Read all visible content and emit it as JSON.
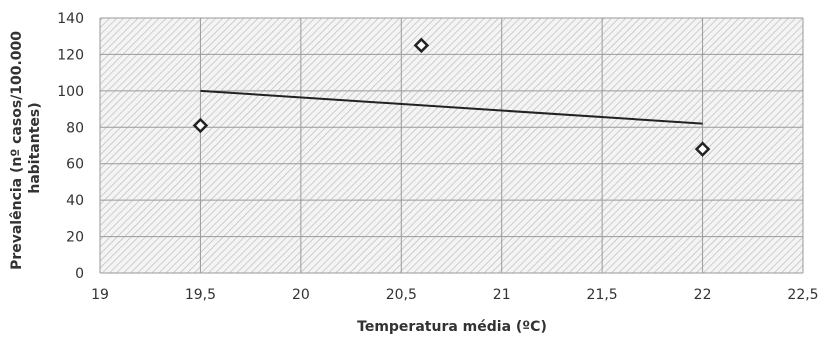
{
  "chart_data": {
    "type": "scatter",
    "title": "",
    "xlabel": "Temperatura média (ºC)",
    "ylabel_lines": [
      "Prevalência (nº casos/100.000",
      "habitantes)"
    ],
    "xlim": [
      19,
      22.5
    ],
    "ylim": [
      0,
      140
    ],
    "x_ticks": [
      19,
      19.5,
      20,
      20.5,
      21,
      21.5,
      22,
      22.5
    ],
    "x_tick_labels": [
      "19",
      "19,5",
      "20",
      "20,5",
      "21",
      "21,5",
      "22",
      "22,5"
    ],
    "y_ticks": [
      0,
      20,
      40,
      60,
      80,
      100,
      120,
      140
    ],
    "y_tick_labels": [
      "0",
      "20",
      "40",
      "60",
      "80",
      "100",
      "120",
      "140"
    ],
    "grid": true,
    "legend": "none",
    "series": [
      {
        "marker": "diamond-open",
        "points": [
          {
            "x": 19.5,
            "y": 81
          },
          {
            "x": 20.6,
            "y": 125
          },
          {
            "x": 22,
            "y": 68
          }
        ]
      }
    ],
    "trendline": {
      "type": "linear",
      "points": [
        {
          "x": 19.5,
          "y": 100
        },
        {
          "x": 22,
          "y": 82
        }
      ]
    },
    "colors": {
      "marker": "#222222",
      "trendline": "#222222",
      "grid": "#9a9a9a",
      "hatch": "#bdbdbd"
    }
  }
}
